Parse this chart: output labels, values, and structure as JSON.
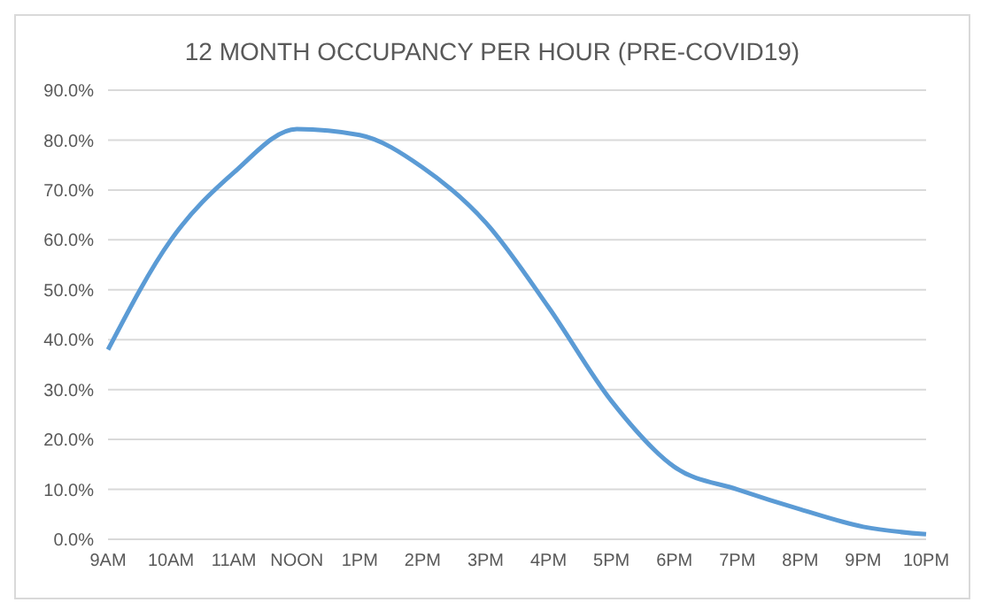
{
  "chart_data": {
    "type": "line",
    "title": "12 MONTH OCCUPANCY PER HOUR (PRE-COVID19)",
    "categories": [
      "9AM",
      "10AM",
      "11AM",
      "NOON",
      "1PM",
      "2PM",
      "3PM",
      "4PM",
      "5PM",
      "6PM",
      "7PM",
      "8PM",
      "9PM",
      "10PM"
    ],
    "series": [
      {
        "color": "#5b9bd5",
        "values": [
          38,
          60,
          73.5,
          82.2,
          81,
          74.5,
          63.5,
          46.5,
          27.7,
          14.5,
          10,
          6,
          2.5,
          1
        ]
      }
    ],
    "ylim": [
      0,
      90
    ],
    "yticks": [
      {
        "value": 0,
        "label": "0.0%"
      },
      {
        "value": 10,
        "label": "10.0%"
      },
      {
        "value": 20,
        "label": "20.0%"
      },
      {
        "value": 30,
        "label": "30.0%"
      },
      {
        "value": 40,
        "label": "40.0%"
      },
      {
        "value": 50,
        "label": "50.0%"
      },
      {
        "value": 60,
        "label": "60.0%"
      },
      {
        "value": 70,
        "label": "70.0%"
      },
      {
        "value": 80,
        "label": "80.0%"
      },
      {
        "value": 90,
        "label": "90.0%"
      }
    ],
    "grid": "y",
    "marker": "none",
    "line_style": "solid",
    "legend": false
  }
}
